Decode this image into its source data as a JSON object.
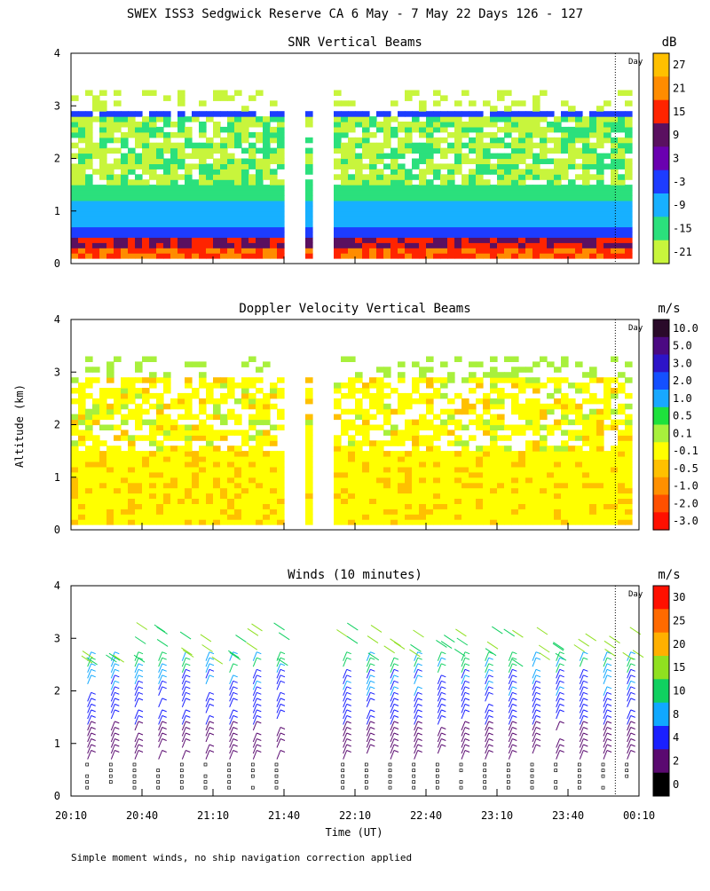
{
  "title": "SWEX ISS3 Sedgwick Reserve CA   6 May -  7 May 22 Days 126 - 127",
  "ylabel": "Altitude (km)",
  "xlabel": "Time (UT)",
  "footnote": "Simple moment winds, no ship navigation correction applied",
  "day_marker": "Day",
  "chart_data": [
    {
      "type": "heatmap",
      "title": "SNR Vertical Beams",
      "units": "dB",
      "xlim": [
        0,
        240
      ],
      "ylim": [
        0,
        4
      ],
      "x_ticks": [
        "20:10",
        "20:40",
        "21:10",
        "21:40",
        "22:10",
        "22:40",
        "23:10",
        "23:40",
        "00:10"
      ],
      "y_ticks": [
        "0",
        "1",
        "2",
        "3",
        "4"
      ],
      "colorbar": {
        "labels": [
          "27",
          "21",
          "15",
          "9",
          "3",
          "-3",
          "-9",
          "-15",
          "-21"
        ],
        "colors": [
          "#ffc000",
          "#ff8c00",
          "#ff2400",
          "#5a1060",
          "#6a00b0",
          "#1d3cff",
          "#17b0ff",
          "#2be07c",
          "#c8f53c"
        ]
      },
      "day_line_x": 230,
      "gaps": [
        [
          90,
          97
        ],
        [
          102,
          110
        ]
      ]
    },
    {
      "type": "heatmap",
      "title": "Doppler Velocity Vertical Beams",
      "units": "m/s",
      "xlim": [
        0,
        240
      ],
      "ylim": [
        0,
        4
      ],
      "x_ticks": [
        "20:10",
        "20:40",
        "21:10",
        "21:40",
        "22:10",
        "22:40",
        "23:10",
        "23:40",
        "00:10"
      ],
      "y_ticks": [
        "0",
        "1",
        "2",
        "3",
        "4"
      ],
      "colorbar": {
        "labels": [
          "10.0",
          "5.0",
          "3.0",
          "2.0",
          "1.0",
          "0.5",
          "0.1",
          "-0.1",
          "-0.5",
          "-1.0",
          "-2.0",
          "-3.0"
        ],
        "colors": [
          "#2a0a2a",
          "#4b0a82",
          "#2d14c8",
          "#1450ff",
          "#18a8ff",
          "#1ee13c",
          "#a8f03c",
          "#ffff00",
          "#ffc000",
          "#ff9000",
          "#ff5000",
          "#ff1000"
        ]
      },
      "day_line_x": 230,
      "gaps": [
        [
          90,
          97
        ],
        [
          102,
          110
        ]
      ]
    },
    {
      "type": "scatter",
      "title": "Winds (10 minutes)",
      "units": "m/s",
      "xlim": [
        0,
        240
      ],
      "ylim": [
        0,
        4
      ],
      "x_ticks": [
        "20:10",
        "20:40",
        "21:10",
        "21:40",
        "22:10",
        "22:40",
        "23:10",
        "23:40",
        "00:10"
      ],
      "y_ticks": [
        "0",
        "1",
        "2",
        "3",
        "4"
      ],
      "colorbar": {
        "labels": [
          "30",
          "25",
          "20",
          "15",
          "10",
          "8",
          "4",
          "2",
          "0"
        ],
        "colors": [
          "#ff1000",
          "#ff6a00",
          "#ffb000",
          "#90e020",
          "#10d060",
          "#10a8ff",
          "#1a20ff",
          "#5a0a70",
          "#000000"
        ]
      },
      "day_line_x": 230,
      "wind_profile_times": [
        7,
        17,
        27,
        37,
        47,
        57,
        67,
        77,
        87,
        115,
        125,
        135,
        145,
        155,
        165,
        175,
        185,
        195,
        205,
        215,
        225,
        235
      ]
    }
  ]
}
